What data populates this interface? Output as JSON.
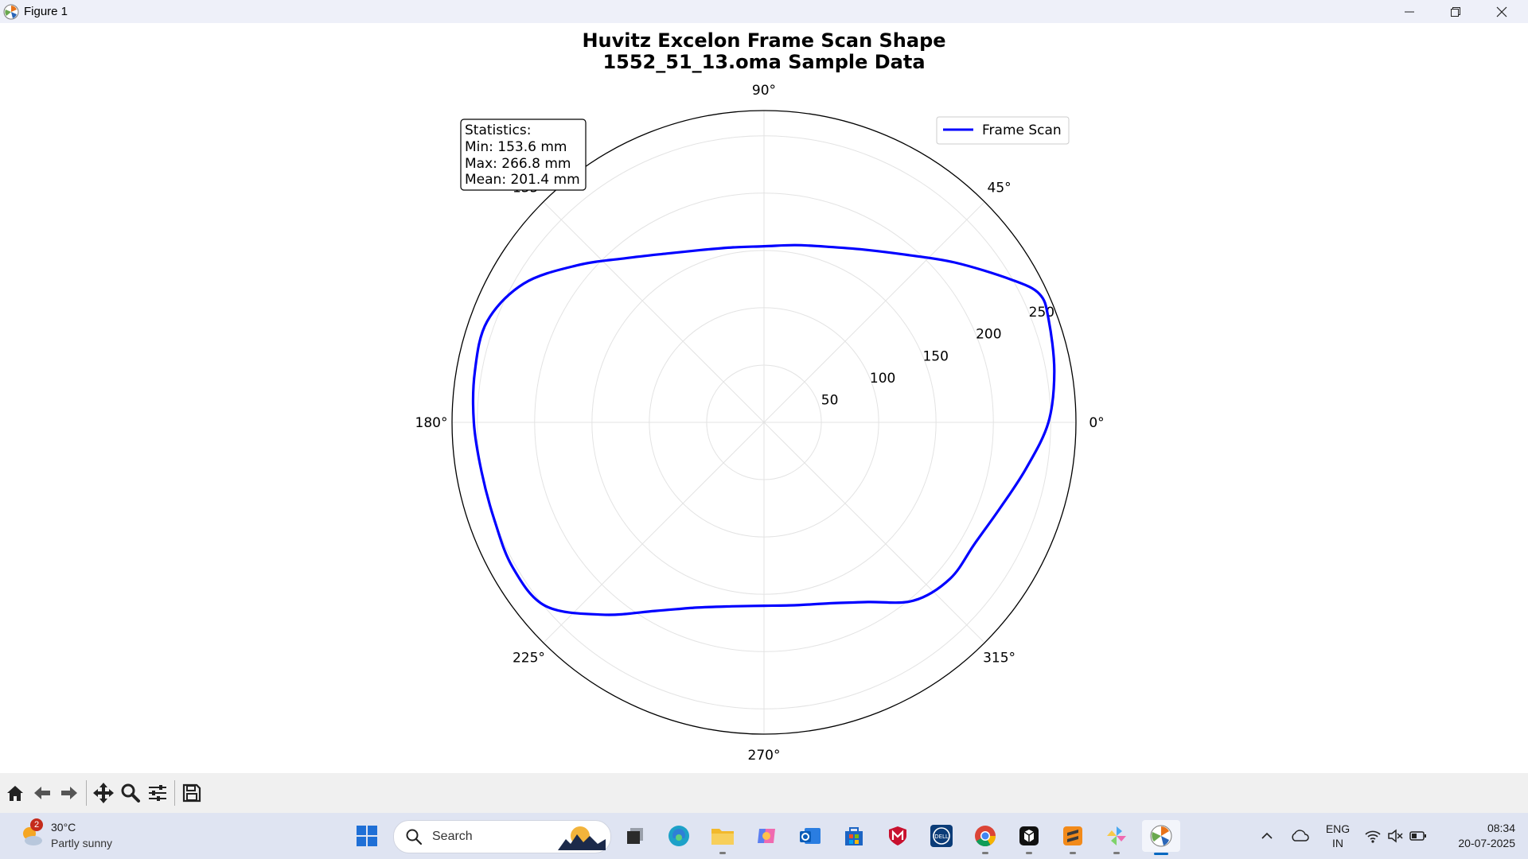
{
  "window": {
    "title": "Figure 1"
  },
  "chart_data": {
    "type": "line",
    "projection": "polar",
    "title": "Huvitz Excelon Frame Scan Shape\n1552_51_13.oma Sample Data",
    "title_lines": [
      "Huvitz Excelon Frame Scan Shape",
      "1552_51_13.oma Sample Data"
    ],
    "angle_ticks": [
      {
        "deg": 0,
        "label": "0°"
      },
      {
        "deg": 45,
        "label": "45°"
      },
      {
        "deg": 90,
        "label": "90°"
      },
      {
        "deg": 135,
        "label": "135°"
      },
      {
        "deg": 180,
        "label": "180°"
      },
      {
        "deg": 225,
        "label": "225°"
      },
      {
        "deg": 270,
        "label": "270°"
      },
      {
        "deg": 315,
        "label": "315°"
      }
    ],
    "radial_ticks": [
      50,
      100,
      150,
      200,
      250
    ],
    "radial_range": [
      0,
      272
    ],
    "grid": true,
    "legend": {
      "position": "top-right",
      "entries": [
        "Frame Scan"
      ]
    },
    "stats_box": {
      "position": "top-left",
      "lines": [
        "Statistics:",
        "Min: 153.6 mm",
        "Max: 266.8 mm",
        "Mean: 201.4 mm"
      ]
    },
    "series": [
      {
        "name": "Frame Scan",
        "color": "#0000ff",
        "points": [
          {
            "theta": 0,
            "r": 248
          },
          {
            "theta": 10,
            "r": 257
          },
          {
            "theta": 20,
            "r": 264
          },
          {
            "theta": 25,
            "r": 265
          },
          {
            "theta": 30,
            "r": 249
          },
          {
            "theta": 40,
            "r": 217
          },
          {
            "theta": 50,
            "r": 191
          },
          {
            "theta": 60,
            "r": 174
          },
          {
            "theta": 70,
            "r": 163
          },
          {
            "theta": 80,
            "r": 157
          },
          {
            "theta": 90,
            "r": 153.6
          },
          {
            "theta": 100,
            "r": 155
          },
          {
            "theta": 110,
            "r": 160
          },
          {
            "theta": 120,
            "r": 170
          },
          {
            "theta": 130,
            "r": 187
          },
          {
            "theta": 140,
            "r": 213
          },
          {
            "theta": 150,
            "r": 242
          },
          {
            "theta": 160,
            "r": 257
          },
          {
            "theta": 170,
            "r": 256
          },
          {
            "theta": 180,
            "r": 253
          },
          {
            "theta": 190,
            "r": 250
          },
          {
            "theta": 200,
            "r": 250
          },
          {
            "theta": 210,
            "r": 253
          },
          {
            "theta": 220,
            "r": 249
          },
          {
            "theta": 230,
            "r": 219
          },
          {
            "theta": 240,
            "r": 190
          },
          {
            "theta": 250,
            "r": 172
          },
          {
            "theta": 260,
            "r": 163
          },
          {
            "theta": 270,
            "r": 160
          },
          {
            "theta": 280,
            "r": 162
          },
          {
            "theta": 290,
            "r": 168
          },
          {
            "theta": 300,
            "r": 181
          },
          {
            "theta": 310,
            "r": 203
          },
          {
            "theta": 320,
            "r": 212
          },
          {
            "theta": 330,
            "r": 212
          },
          {
            "theta": 340,
            "r": 219
          },
          {
            "theta": 350,
            "r": 232
          }
        ]
      }
    ]
  },
  "toolbar": {
    "buttons": [
      "home-icon",
      "back-arrow-icon",
      "forward-arrow-icon",
      "pan-icon",
      "zoom-icon",
      "configure-subplots-icon",
      "save-icon"
    ]
  },
  "taskbar": {
    "weather": {
      "temp": "30°C",
      "desc": "Partly sunny",
      "badge": "2"
    },
    "search_placeholder": "Search",
    "tray": {
      "lang_line1": "ENG",
      "lang_line2": "IN",
      "time": "08:34",
      "date": "20-07-2025"
    }
  }
}
